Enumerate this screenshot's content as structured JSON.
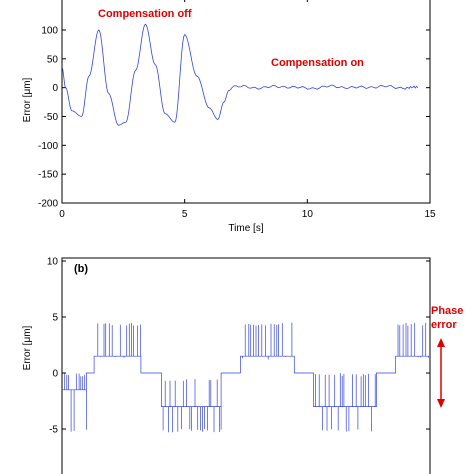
{
  "chart_data": [
    {
      "type": "line",
      "xlabel": "Time [s]",
      "ylabel": "Error [μm]",
      "xlim": [
        0,
        15
      ],
      "ylim": [
        -200,
        100
      ],
      "xticks": [
        0,
        5,
        10,
        15
      ],
      "yticks": [
        -200,
        -150,
        -100,
        -50,
        0,
        50,
        100
      ],
      "xtick_labels": [
        "0",
        "5",
        "10",
        "15"
      ],
      "ytick_labels": [
        "-200",
        "-150",
        "-100",
        "-50",
        "0",
        "50",
        "100"
      ],
      "grid": false,
      "annotations": [
        {
          "text": "Compensation off",
          "color": "#dd0000"
        },
        {
          "text": "Compensation on",
          "color": "#dd0000"
        }
      ],
      "series": [
        {
          "color": "#3344dd",
          "x": [
            0,
            0.15,
            0.4,
            0.8,
            1.1,
            1.5,
            1.9,
            2.3,
            2.6,
            3.0,
            3.4,
            3.8,
            4.2,
            4.6,
            5.0,
            5.5,
            6.0,
            6.35,
            6.6,
            6.8,
            7.0,
            8.0,
            9.0,
            10.0,
            11.0,
            12.0,
            13.0,
            14.0,
            14.5
          ],
          "y": [
            35,
            0,
            -40,
            -50,
            20,
            100,
            -10,
            -65,
            -60,
            30,
            110,
            40,
            -45,
            -60,
            92,
            20,
            -35,
            -55,
            -25,
            -5,
            2,
            0,
            2,
            -1,
            2,
            0,
            2,
            0,
            0
          ],
          "noise_amplitude_after_compensation": 3
        }
      ]
    },
    {
      "type": "line",
      "panel_label": "(b)",
      "ylabel": "Error [μm]",
      "ylim": [
        -10,
        10
      ],
      "yticks": [
        -5,
        0,
        5,
        10
      ],
      "ytick_labels": [
        "-5",
        "0",
        "5",
        "10"
      ],
      "grid": false,
      "annotations": [
        {
          "text": "Phase error",
          "lines": [
            "Phase",
            "error"
          ],
          "color": "#dd0000"
        }
      ],
      "segments": [
        {
          "t0": 0.0,
          "t1": 0.38,
          "base": -1.5,
          "spike_low": -5.0,
          "spike_high": 0.0
        },
        {
          "t0": 0.38,
          "t1": 0.5,
          "base": 0.0
        },
        {
          "t0": 0.5,
          "t1": 1.23,
          "base": 1.5,
          "spike_low": 1.5,
          "spike_high": 4.5
        },
        {
          "t0": 1.23,
          "t1": 1.55,
          "base": 0.0
        },
        {
          "t0": 1.55,
          "t1": 2.48,
          "base": -3.0,
          "spike_low": -5.0,
          "spike_high": -0.5
        },
        {
          "t0": 2.48,
          "t1": 2.78,
          "base": 0.0
        },
        {
          "t0": 2.78,
          "t1": 3.62,
          "base": 1.5,
          "spike_low": 1.5,
          "spike_high": 4.5
        },
        {
          "t0": 3.62,
          "t1": 3.92,
          "base": 0.0
        },
        {
          "t0": 3.92,
          "t1": 4.9,
          "base": -3.0,
          "spike_low": -5.0,
          "spike_high": 0.0
        },
        {
          "t0": 4.9,
          "t1": 5.2,
          "base": 0.0
        },
        {
          "t0": 5.2,
          "t1": 5.72,
          "base": 1.5,
          "spike_low": 1.5,
          "spike_high": 4.5
        }
      ]
    }
  ],
  "colors": {
    "series": "#3344dd",
    "annotation": "#dd0000",
    "axis": "#000000"
  }
}
